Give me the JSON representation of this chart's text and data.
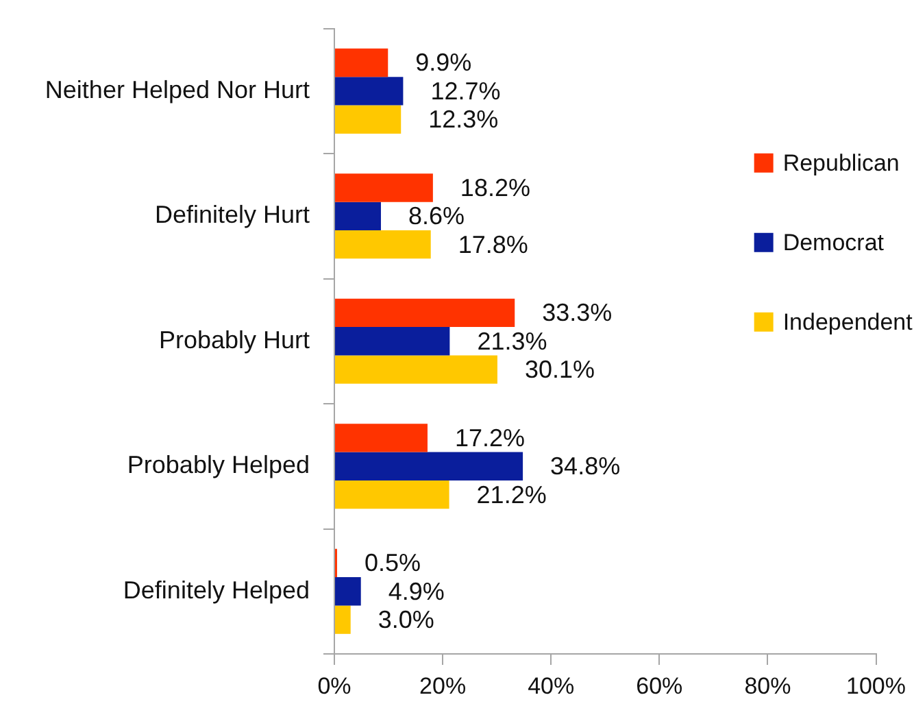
{
  "chart_data": {
    "type": "bar",
    "orientation": "horizontal",
    "categories": [
      "Neither Helped Nor Hurt",
      "Definitely Hurt",
      "Probably Hurt",
      "Probably Helped",
      "Definitely Helped"
    ],
    "series": [
      {
        "name": "Republican",
        "color": "#ff3300",
        "values": [
          9.9,
          18.2,
          33.3,
          17.2,
          0.5
        ],
        "value_labels": [
          "9.9%",
          "18.2%",
          "33.3%",
          "17.2%",
          "0.5%"
        ]
      },
      {
        "name": "Democrat",
        "color": "#0a1e9c",
        "values": [
          12.7,
          8.6,
          21.3,
          34.8,
          4.9
        ],
        "value_labels": [
          "12.7%",
          "8.6%",
          "21.3%",
          "34.8%",
          "4.9%"
        ]
      },
      {
        "name": "Independent",
        "color": "#ffc800",
        "values": [
          12.3,
          17.8,
          30.1,
          21.2,
          3.0
        ],
        "value_labels": [
          "12.3%",
          "17.8%",
          "30.1%",
          "21.2%",
          "3.0%"
        ]
      }
    ],
    "xlim": [
      0,
      100
    ],
    "xticks": [
      {
        "value": 0,
        "label": "0%"
      },
      {
        "value": 20,
        "label": "20%"
      },
      {
        "value": 40,
        "label": "40%"
      },
      {
        "value": 60,
        "label": "60%"
      },
      {
        "value": 80,
        "label": "80%"
      },
      {
        "value": 100,
        "label": "100%"
      }
    ],
    "grid": false,
    "legend": "right"
  }
}
